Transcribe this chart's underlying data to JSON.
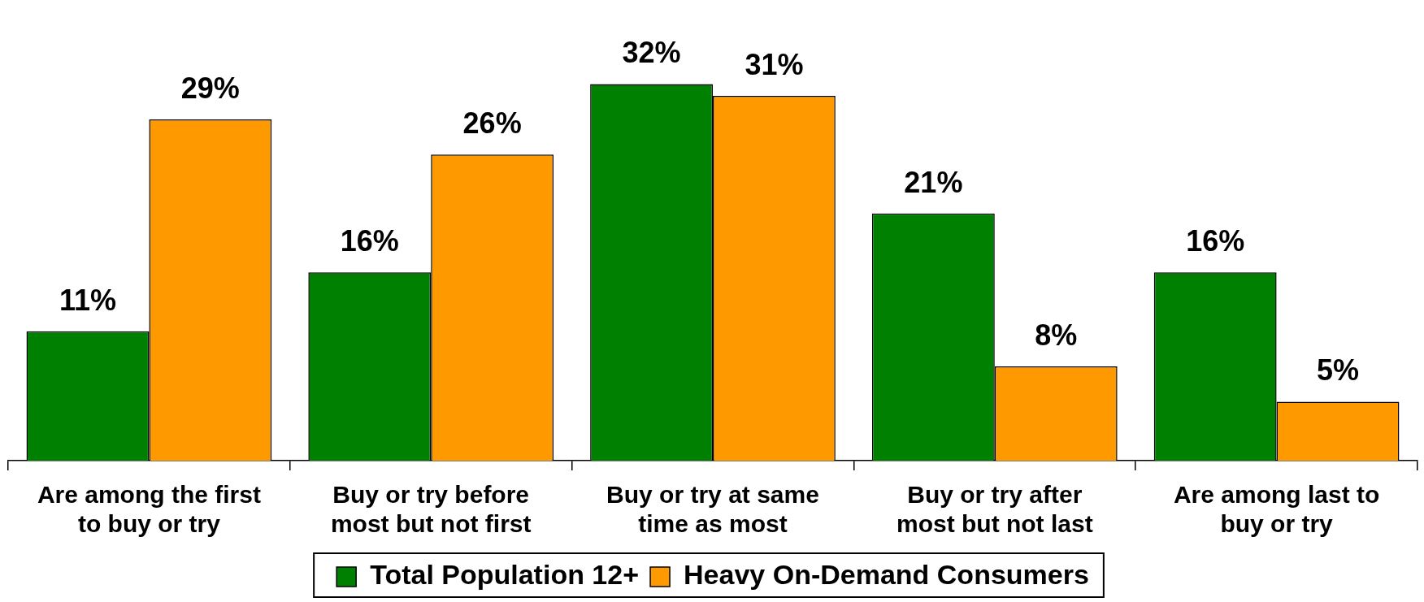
{
  "chart_data": {
    "type": "bar",
    "categories": [
      "Are among the first to buy or try",
      "Buy or try before most but not first",
      "Buy or try at same time as most",
      "Buy or try after most but not last",
      "Are among last to buy or try"
    ],
    "series": [
      {
        "name": "Total Population 12+",
        "color": "#008000",
        "values": [
          11,
          16,
          32,
          21,
          16
        ],
        "value_labels": [
          "11%",
          "16%",
          "32%",
          "21%",
          "16%"
        ]
      },
      {
        "name": "Heavy On-Demand Consumers",
        "color": "#ff9900",
        "values": [
          29,
          26,
          31,
          8,
          5
        ],
        "value_labels": [
          "29%",
          "26%",
          "31%",
          "8%",
          "5%"
        ]
      }
    ],
    "legend": "bottom",
    "grid": false
  }
}
